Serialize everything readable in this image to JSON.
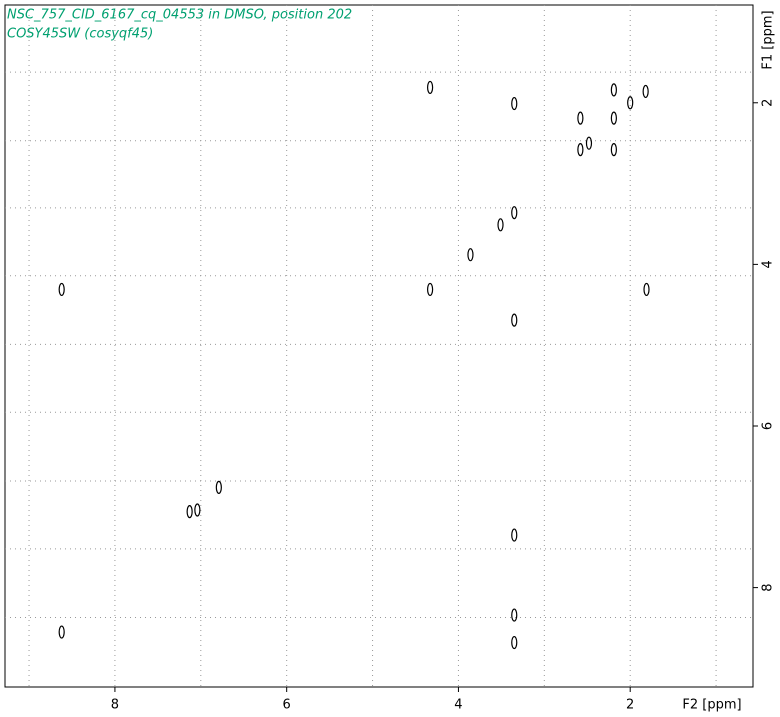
{
  "chart_data": {
    "type": "contour",
    "title": "NSC_757_CID_6167_cq_04553 in DMSO, position 202",
    "subtitle": "COSY45SW (cosyqf45)",
    "x_label": "F2 [ppm]",
    "y_label": "F1 [ppm]",
    "xlim": [
      9.28,
      0.57
    ],
    "ylim": [
      0.79,
      9.23
    ],
    "xticks": [
      8,
      6,
      4,
      2
    ],
    "yticks": [
      2,
      4,
      6,
      8
    ],
    "xgrid": [
      9,
      8,
      7,
      6,
      5,
      4,
      3,
      2,
      1
    ],
    "ygrid": [
      1.62,
      2.47,
      3.3,
      4.14,
      4.99,
      5.83,
      6.68,
      7.52,
      8.37
    ],
    "grid": true,
    "color": "#000000",
    "title_color": "#00a070",
    "x": [
      4.33,
      3.35,
      3.35,
      3.51,
      3.86,
      4.33,
      8.62,
      3.35,
      3.35,
      3.35,
      8.62,
      7.13,
      7.04,
      6.79,
      2.58,
      2.58,
      2.48,
      2.19,
      2.19,
      2.19,
      2.0,
      1.82,
      1.81,
      3.35
    ],
    "y": [
      1.81,
      2.01,
      3.36,
      3.51,
      3.88,
      4.31,
      4.31,
      4.69,
      7.35,
      8.68,
      8.55,
      7.06,
      7.04,
      6.76,
      2.19,
      2.58,
      2.5,
      1.84,
      2.19,
      2.58,
      2.0,
      1.86,
      4.31,
      8.34
    ]
  }
}
